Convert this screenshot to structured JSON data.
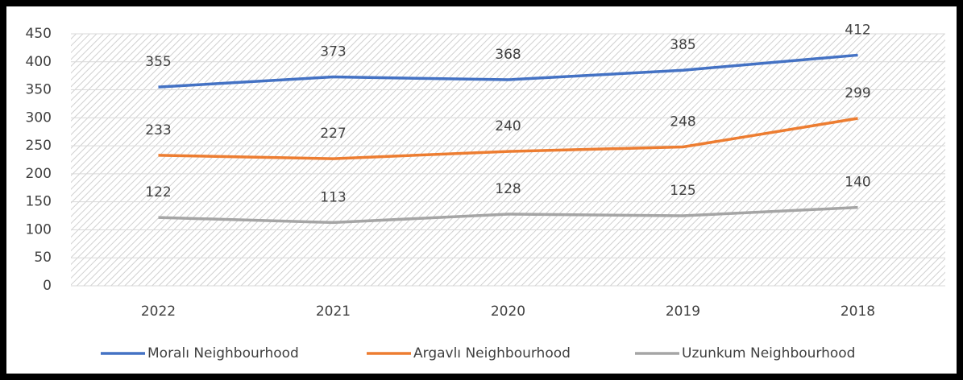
{
  "chart_data": {
    "type": "line",
    "categories": [
      "2022",
      "2021",
      "2020",
      "2019",
      "2018"
    ],
    "series": [
      {
        "name": "Moralı Neighbourhood",
        "color": "#4472c4",
        "values": [
          355,
          373,
          368,
          385,
          412
        ]
      },
      {
        "name": "Argavlı Neighbourhood",
        "color": "#ed7d31",
        "values": [
          233,
          227,
          240,
          248,
          299
        ]
      },
      {
        "name": "Uzunkum Neighbourhood",
        "color": "#a5a5a5",
        "values": [
          122,
          113,
          128,
          125,
          140
        ]
      }
    ],
    "ylim": [
      0,
      450
    ],
    "yticks": [
      0,
      50,
      100,
      150,
      200,
      250,
      300,
      350,
      400,
      450
    ],
    "grid": true,
    "legend": "bottom"
  }
}
